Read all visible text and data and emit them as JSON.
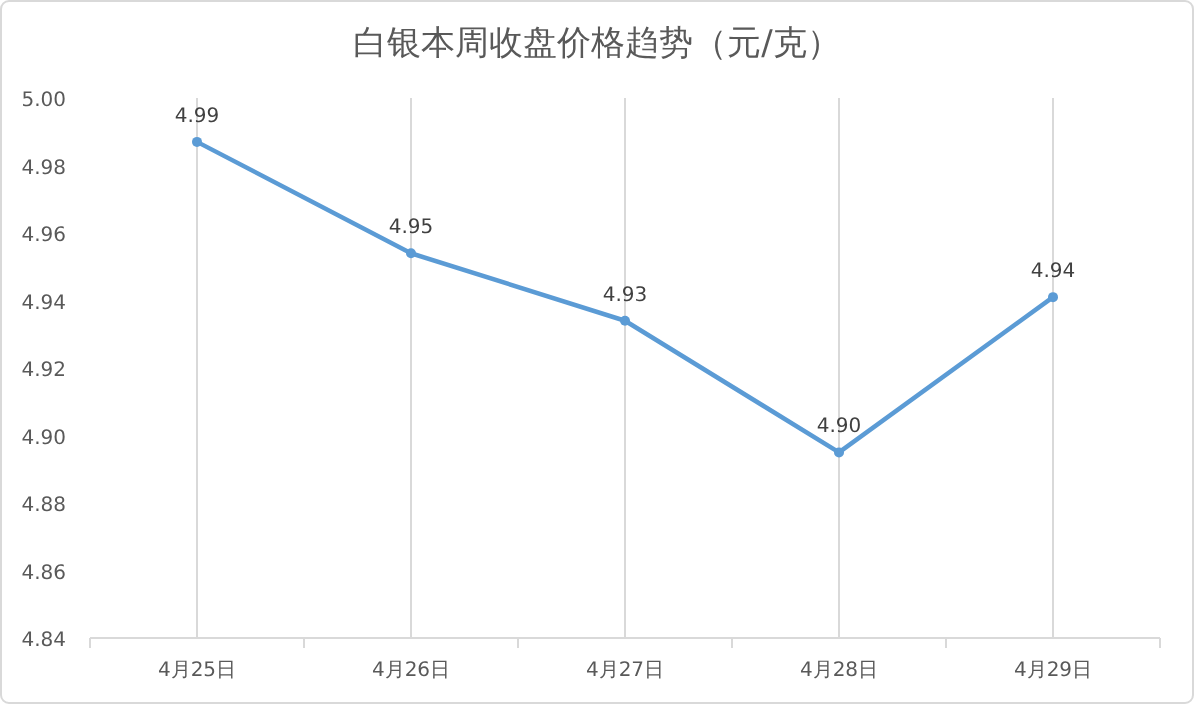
{
  "chart_data": {
    "type": "line",
    "title": "白银本周收盘价格趋势（元/克）",
    "categories": [
      "4月25日",
      "4月26日",
      "4月27日",
      "4月28日",
      "4月29日"
    ],
    "series": [
      {
        "color": "#5b9bd5",
        "values": [
          4.987,
          4.954,
          4.934,
          4.895,
          4.941
        ],
        "value_labels": [
          "4.99",
          "4.95",
          "4.93",
          "4.90",
          "4.94"
        ]
      }
    ],
    "ylim": [
      4.84,
      5.0
    ],
    "yticks": [
      {
        "value": 4.84,
        "label": "4.84"
      },
      {
        "value": 4.86,
        "label": "4.86"
      },
      {
        "value": 4.88,
        "label": "4.88"
      },
      {
        "value": 4.9,
        "label": "4.90"
      },
      {
        "value": 4.92,
        "label": "4.92"
      },
      {
        "value": 4.94,
        "label": "4.94"
      },
      {
        "value": 4.96,
        "label": "4.96"
      },
      {
        "value": 4.98,
        "label": "4.98"
      },
      {
        "value": 5.0,
        "label": "5.00"
      }
    ],
    "grid": "x",
    "marker": "circle",
    "line_style": "solid"
  }
}
